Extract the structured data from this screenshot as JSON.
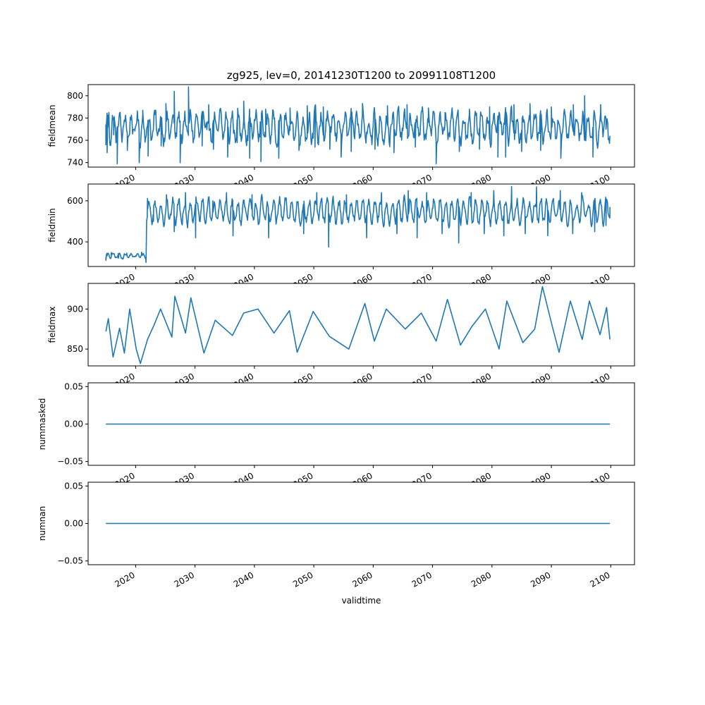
{
  "figure": {
    "title": "zg925, lev=0, 20141230T1200 to 20991108T1200",
    "xlabel": "validtime",
    "line_color": "#1f77b4"
  },
  "chart_data": [
    {
      "type": "line",
      "ylabel": "fieldmean",
      "x_range": [
        2014.99,
        2099.86
      ],
      "xlim": [
        2012.0,
        2104.0
      ],
      "ylim": [
        736,
        810
      ],
      "yticks": [
        "740",
        "760",
        "780",
        "800"
      ],
      "xticks": [
        "2020",
        "2030",
        "2040",
        "2050",
        "2060",
        "2070",
        "2080",
        "2090",
        "2100"
      ],
      "baseline": 772,
      "amplitude": 11,
      "noise": 9,
      "value_bounds": [
        739,
        808
      ],
      "values": [
        [
          2014.99,
          756
        ],
        [
          2015.2,
          749
        ],
        [
          2015.5,
          785
        ],
        [
          2016.3,
          765
        ],
        [
          2016.9,
          739
        ],
        [
          2018.6,
          751
        ],
        [
          2019.9,
          770
        ],
        [
          2020.6,
          740
        ],
        [
          2021.2,
          787
        ],
        [
          2022.1,
          746
        ],
        [
          2023.2,
          783
        ],
        [
          2024.3,
          755
        ],
        [
          2025.1,
          793
        ],
        [
          2026.5,
          804
        ],
        [
          2027.5,
          740
        ],
        [
          2028.9,
          808
        ],
        [
          2031.2,
          755
        ],
        [
          2032.3,
          792
        ],
        [
          2033.1,
          752
        ],
        [
          2035.5,
          745
        ],
        [
          2037.1,
          758
        ],
        [
          2038.2,
          795
        ],
        [
          2039.2,
          744
        ],
        [
          2041.1,
          741
        ],
        [
          2041.9,
          788
        ],
        [
          2044.1,
          744
        ],
        [
          2046.0,
          789
        ],
        [
          2047.5,
          751
        ],
        [
          2048.9,
          791
        ],
        [
          2050.2,
          754
        ],
        [
          2051.6,
          790
        ],
        [
          2052.7,
          752
        ],
        [
          2054.6,
          745
        ],
        [
          2056.3,
          750
        ],
        [
          2058.2,
          793
        ],
        [
          2060.3,
          752
        ],
        [
          2062.4,
          791
        ],
        [
          2063.5,
          749
        ],
        [
          2065.7,
          792
        ],
        [
          2067.1,
          754
        ],
        [
          2069.3,
          789
        ],
        [
          2070.6,
          739
        ],
        [
          2072.1,
          785
        ],
        [
          2074.5,
          750
        ],
        [
          2076.2,
          788
        ],
        [
          2077.9,
          752
        ],
        [
          2079.6,
          790
        ],
        [
          2081.0,
          745
        ],
        [
          2082.3,
          745
        ],
        [
          2083.7,
          792
        ],
        [
          2085.0,
          750
        ],
        [
          2086.4,
          793
        ],
        [
          2088.2,
          751
        ],
        [
          2090.0,
          790
        ],
        [
          2091.6,
          744
        ],
        [
          2093.7,
          792
        ],
        [
          2095.6,
          800
        ],
        [
          2097.0,
          745
        ],
        [
          2098.3,
          792
        ],
        [
          2099.2,
          770
        ],
        [
          2099.86,
          764
        ]
      ]
    },
    {
      "type": "line",
      "ylabel": "fieldmin",
      "x_range": [
        2014.99,
        2099.86
      ],
      "xlim": [
        2012.0,
        2104.0
      ],
      "ylim": [
        280,
        682
      ],
      "yticks": [
        "400",
        "600"
      ],
      "xticks": [
        "2020",
        "2030",
        "2040",
        "2050",
        "2060",
        "2070",
        "2080",
        "2090",
        "2100"
      ],
      "segments": [
        {
          "x": [
            2014.99,
            2021.75
          ],
          "baseline": 332,
          "amplitude": 10,
          "noise": 8,
          "bounds": [
            300,
            360
          ]
        },
        {
          "x": [
            2021.85,
            2099.86
          ],
          "baseline": 548,
          "amplitude": 52,
          "noise": 30,
          "bounds": [
            374,
            672
          ]
        }
      ],
      "values": [
        [
          2014.99,
          310
        ],
        [
          2015.2,
          332
        ],
        [
          2015.9,
          348
        ],
        [
          2017.1,
          320
        ],
        [
          2018.5,
          345
        ],
        [
          2020.1,
          330
        ],
        [
          2021.0,
          350
        ],
        [
          2021.75,
          300
        ],
        [
          2022.0,
          612
        ],
        [
          2023.0,
          500
        ],
        [
          2025.2,
          630
        ],
        [
          2026.5,
          450
        ],
        [
          2028.4,
          640
        ],
        [
          2030.1,
          420
        ],
        [
          2033.0,
          600
        ],
        [
          2035.3,
          640
        ],
        [
          2036.4,
          430
        ],
        [
          2039.6,
          630
        ],
        [
          2042.4,
          420
        ],
        [
          2045.2,
          610
        ],
        [
          2048.3,
          440
        ],
        [
          2050.5,
          640
        ],
        [
          2052.5,
          375
        ],
        [
          2055.5,
          630
        ],
        [
          2058.9,
          420
        ],
        [
          2061.4,
          640
        ],
        [
          2064.0,
          440
        ],
        [
          2065.9,
          650
        ],
        [
          2067.4,
          420
        ],
        [
          2069.0,
          640
        ],
        [
          2071.6,
          440
        ],
        [
          2074.4,
          395
        ],
        [
          2076.5,
          640
        ],
        [
          2078.7,
          440
        ],
        [
          2080.3,
          650
        ],
        [
          2082.0,
          430
        ],
        [
          2083.3,
          670
        ],
        [
          2085.6,
          440
        ],
        [
          2087.5,
          668
        ],
        [
          2089.4,
          430
        ],
        [
          2091.5,
          650
        ],
        [
          2093.6,
          440
        ],
        [
          2095.1,
          640
        ],
        [
          2097.3,
          450
        ],
        [
          2099.2,
          480
        ],
        [
          2099.86,
          570
        ]
      ]
    },
    {
      "type": "line",
      "ylabel": "fieldmax",
      "x_range": [
        2014.99,
        2099.86
      ],
      "xlim": [
        2012.0,
        2104.0
      ],
      "ylim": [
        829,
        932
      ],
      "yticks": [
        "850",
        "900"
      ],
      "xticks": [
        "2020",
        "2030",
        "2040",
        "2050",
        "2060",
        "2070",
        "2080",
        "2090",
        "2100"
      ],
      "values": [
        [
          2014.99,
          872
        ],
        [
          2015.4,
          888
        ],
        [
          2016.2,
          840
        ],
        [
          2017.3,
          876
        ],
        [
          2018.1,
          845
        ],
        [
          2019.0,
          900
        ],
        [
          2020.1,
          850
        ],
        [
          2020.8,
          832
        ],
        [
          2022.0,
          862
        ],
        [
          2023.1,
          880
        ],
        [
          2024.2,
          900
        ],
        [
          2026.1,
          865
        ],
        [
          2026.6,
          916
        ],
        [
          2028.4,
          870
        ],
        [
          2029.3,
          914
        ],
        [
          2031.5,
          845
        ],
        [
          2033.4,
          886
        ],
        [
          2036.3,
          867
        ],
        [
          2038.2,
          895
        ],
        [
          2040.6,
          900
        ],
        [
          2043.3,
          870
        ],
        [
          2045.9,
          898
        ],
        [
          2047.2,
          846
        ],
        [
          2049.9,
          897
        ],
        [
          2052.6,
          866
        ],
        [
          2055.9,
          850
        ],
        [
          2058.6,
          907
        ],
        [
          2060.2,
          860
        ],
        [
          2062.2,
          900
        ],
        [
          2065.4,
          875
        ],
        [
          2068.1,
          895
        ],
        [
          2070.6,
          860
        ],
        [
          2072.5,
          912
        ],
        [
          2074.7,
          855
        ],
        [
          2076.6,
          878
        ],
        [
          2078.9,
          900
        ],
        [
          2081.2,
          850
        ],
        [
          2082.5,
          910
        ],
        [
          2085.2,
          858
        ],
        [
          2087.2,
          875
        ],
        [
          2088.5,
          928
        ],
        [
          2090.1,
          880
        ],
        [
          2091.3,
          846
        ],
        [
          2093.2,
          910
        ],
        [
          2095.2,
          862
        ],
        [
          2096.4,
          910
        ],
        [
          2098.2,
          868
        ],
        [
          2099.3,
          902
        ],
        [
          2099.86,
          862
        ]
      ]
    },
    {
      "type": "line",
      "ylabel": "nummasked",
      "x_range": [
        2014.99,
        2099.86
      ],
      "xlim": [
        2012.0,
        2104.0
      ],
      "ylim": [
        -0.055,
        0.055
      ],
      "yticks": [
        "−0.05",
        "0.00",
        "0.05"
      ],
      "xticks": [
        "2020",
        "2030",
        "2040",
        "2050",
        "2060",
        "2070",
        "2080",
        "2090",
        "2100"
      ],
      "values": [
        [
          2014.99,
          0
        ],
        [
          2099.86,
          0
        ]
      ]
    },
    {
      "type": "line",
      "ylabel": "numnan",
      "x_range": [
        2014.99,
        2099.86
      ],
      "xlim": [
        2012.0,
        2104.0
      ],
      "ylim": [
        -0.055,
        0.055
      ],
      "yticks": [
        "−0.05",
        "0.00",
        "0.05"
      ],
      "xticks": [
        "2020",
        "2030",
        "2040",
        "2050",
        "2060",
        "2070",
        "2080",
        "2090",
        "2100"
      ],
      "values": [
        [
          2014.99,
          0
        ],
        [
          2099.86,
          0
        ]
      ]
    }
  ]
}
